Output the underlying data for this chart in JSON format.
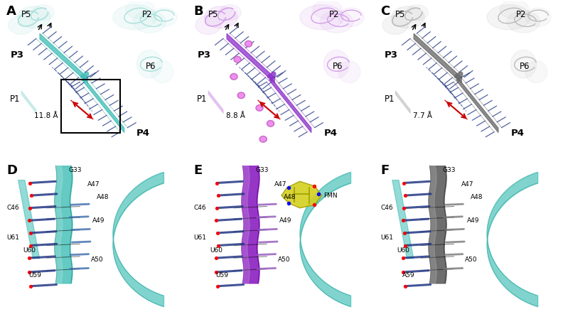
{
  "col_colors": [
    {
      "main": "#3DBDB5",
      "light": "#A8E0DC",
      "dark": "#1A8D84",
      "bg": "#E8F8F7"
    },
    {
      "main": "#8B2FC9",
      "light": "#D4A0E8",
      "dark": "#5B008B",
      "bg": "#F2E8F8"
    },
    {
      "main": "#666666",
      "light": "#BBBBBB",
      "dark": "#333333",
      "bg": "#F0F0F0"
    }
  ],
  "distances": [
    "11.8 Å",
    "8.8 Å",
    "7.7 Å"
  ],
  "residues_bottom": {
    "D": [
      "G33",
      "A47",
      "A48",
      "C46",
      "A49",
      "U61",
      "U60",
      "A50",
      "U59"
    ],
    "E": [
      "G33",
      "A47",
      "A48",
      "C46",
      "A49",
      "U61",
      "U60",
      "A50",
      "U59"
    ],
    "F": [
      "G33",
      "A47",
      "A48",
      "C46",
      "A49",
      "U61",
      "U60",
      "A50",
      "A59"
    ]
  },
  "panel_letters_top": [
    "A",
    "B",
    "C"
  ],
  "panel_letters_bot": [
    "D",
    "E",
    "F"
  ],
  "teal": "#3DBDB5",
  "purple_dark": "#7B1FA2",
  "purple_light": "#CE93D8",
  "gray_dark": "#555555",
  "gray_light": "#AAAAAA",
  "yellow_fmn": "#C8C820",
  "navy": "#1A3080",
  "red": "#CC0000"
}
